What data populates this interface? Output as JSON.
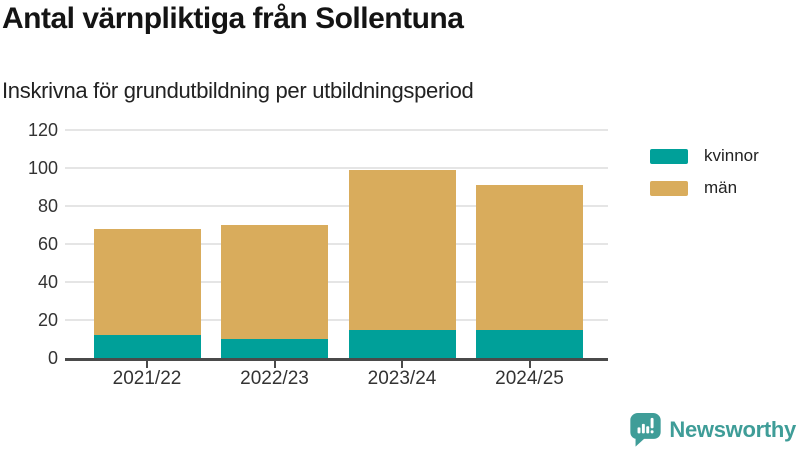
{
  "header": {
    "title": "Antal värnpliktiga från Sollentuna",
    "subtitle": "Inskrivna för grundutbildning per utbildningsperiod"
  },
  "chart_data": {
    "type": "bar",
    "stacked": true,
    "title": "Antal värnpliktiga från Sollentuna",
    "subtitle": "Inskrivna för grundutbildning per utbildningsperiod",
    "categories": [
      "2021/22",
      "2022/23",
      "2023/24",
      "2024/25"
    ],
    "series": [
      {
        "name": "kvinnor",
        "color": "#00A099",
        "values": [
          12,
          10,
          15,
          15
        ]
      },
      {
        "name": "män",
        "color": "#D9AC5C",
        "values": [
          56,
          60,
          84,
          76
        ]
      }
    ],
    "stack_totals": [
      68,
      70,
      99,
      91
    ],
    "ylabel": "",
    "xlabel": "",
    "ylim": [
      0,
      120
    ],
    "yticks": [
      0,
      20,
      40,
      60,
      80,
      100,
      120
    ],
    "grid": true,
    "legend_position": "right"
  },
  "colors": {
    "kvinnor": "#00A099",
    "man": "#D9AC5C",
    "axis_line": "#4a4a4a",
    "gridline": "#e5e5e5",
    "title_text": "#141414",
    "axis_text": "#333333",
    "brand_teal": "#3F9D98"
  },
  "footer": {
    "brand": "Newsworthy",
    "logo_icon": "bar-chart-speech-bubble-icon"
  }
}
